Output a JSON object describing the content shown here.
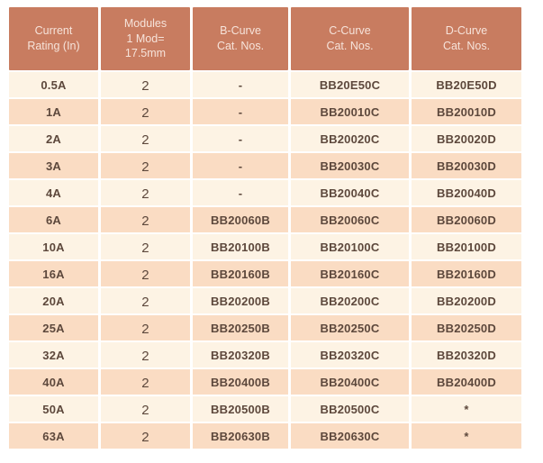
{
  "colors": {
    "header_bg": "#c87c60",
    "header_text": "#f6e3da",
    "row_light_bg": "#fdf3e4",
    "row_dark_bg": "#fadcc3",
    "cell_text": "#5d483c",
    "page_bg": "#ffffff"
  },
  "table": {
    "columns": [
      {
        "id": "current-rating",
        "label": "Current\nRating (In)"
      },
      {
        "id": "modules",
        "label": "Modules\n1 Mod=\n17.5mm"
      },
      {
        "id": "b-curve",
        "label": "B-Curve\nCat. Nos."
      },
      {
        "id": "c-curve",
        "label": "C-Curve\nCat. Nos."
      },
      {
        "id": "d-curve",
        "label": "D-Curve\nCat. Nos."
      }
    ],
    "rows": [
      {
        "cells": [
          "0.5A",
          "2",
          "-",
          "BB20E50C",
          "BB20E50D"
        ]
      },
      {
        "cells": [
          "1A",
          "2",
          "-",
          "BB20010C",
          "BB20010D"
        ]
      },
      {
        "cells": [
          "2A",
          "2",
          "-",
          "BB20020C",
          "BB20020D"
        ]
      },
      {
        "cells": [
          "3A",
          "2",
          "-",
          "BB20030C",
          "BB20030D"
        ]
      },
      {
        "cells": [
          "4A",
          "2",
          "-",
          "BB20040C",
          "BB20040D"
        ]
      },
      {
        "cells": [
          "6A",
          "2",
          "BB20060B",
          "BB20060C",
          "BB20060D"
        ]
      },
      {
        "cells": [
          "10A",
          "2",
          "BB20100B",
          "BB20100C",
          "BB20100D"
        ]
      },
      {
        "cells": [
          "16A",
          "2",
          "BB20160B",
          "BB20160C",
          "BB20160D"
        ]
      },
      {
        "cells": [
          "20A",
          "2",
          "BB20200B",
          "BB20200C",
          "BB20200D"
        ]
      },
      {
        "cells": [
          "25A",
          "2",
          "BB20250B",
          "BB20250C",
          "BB20250D"
        ]
      },
      {
        "cells": [
          "32A",
          "2",
          "BB20320B",
          "BB20320C",
          "BB20320D"
        ]
      },
      {
        "cells": [
          "40A",
          "2",
          "BB20400B",
          "BB20400C",
          "BB20400D"
        ]
      },
      {
        "cells": [
          "50A",
          "2",
          "BB20500B",
          "BB20500C",
          "*"
        ]
      },
      {
        "cells": [
          "63A",
          "2",
          "BB20630B",
          "BB20630C",
          "*"
        ]
      }
    ]
  }
}
